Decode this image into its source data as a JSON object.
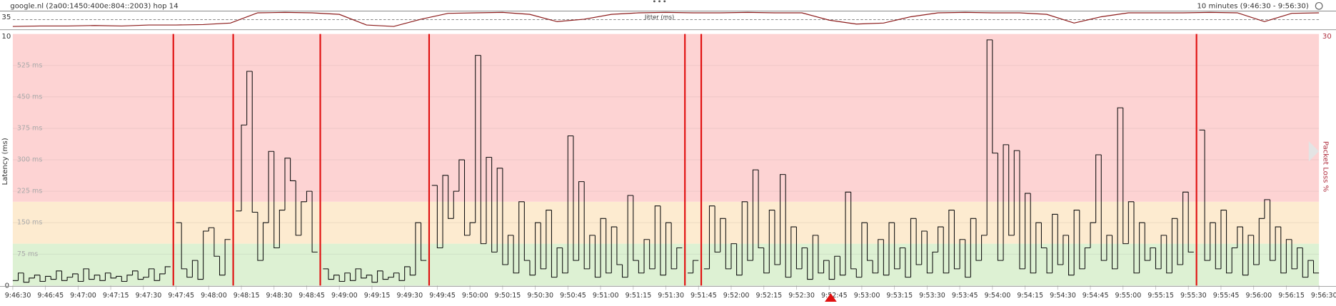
{
  "header": {
    "target": "google.nl (2a00:1450:400e:804::2003) hop 14",
    "range": "10 minutes (9:46:30 - 9:56:30)"
  },
  "chart_data": {
    "type": "line",
    "step": true,
    "ylabel": "Latency (ms)",
    "y2label": "Packet Loss %",
    "y_top_label": "10",
    "ylim": [
      0,
      600
    ],
    "yticks": [
      0,
      {
        "value": 75,
        "label": "75 ms"
      },
      {
        "value": 150,
        "label": "150 ms"
      },
      {
        "value": 225,
        "label": "225 ms"
      },
      {
        "value": 300,
        "label": "300 ms"
      },
      {
        "value": 375,
        "label": "375 ms"
      },
      {
        "value": 450,
        "label": "450 ms"
      },
      {
        "value": 525,
        "label": "525 ms"
      }
    ],
    "y2lim": [
      0,
      30
    ],
    "y2ticks": [
      30
    ],
    "grid": true,
    "zones": [
      {
        "to": 100,
        "color": "#ddf1d3"
      },
      {
        "to": 200,
        "color": "#fdebd0"
      },
      {
        "to": 600,
        "color": "#fdd3d3"
      }
    ],
    "xticks": [
      "9:46:30",
      "9:46:45",
      "9:47:00",
      "9:47:15",
      "9:47:30",
      "9:47:45",
      "9:48:00",
      "9:48:15",
      "9:48:30",
      "9:48:45",
      "9:49:00",
      "9:49:15",
      "9:49:30",
      "9:49:45",
      "9:50:00",
      "9:50:15",
      "9:50:30",
      "9:50:45",
      "9:51:00",
      "9:51:15",
      "9:51:30",
      "9:51:45",
      "9:52:00",
      "9:52:15",
      "9:52:30",
      "9:52:45",
      "9:53:00",
      "9:53:15",
      "9:53:30",
      "9:53:45",
      "9:54:00",
      "9:54:15",
      "9:54:30",
      "9:54:45",
      "9:55:00",
      "9:55:15",
      "9:55:30",
      "9:55:45",
      "9:56:00",
      "9:56:15",
      "9:56:30"
    ],
    "color": "#111111",
    "loss_color": "#e01010",
    "values": [
      12,
      30,
      8,
      18,
      25,
      10,
      22,
      15,
      35,
      12,
      20,
      28,
      10,
      40,
      15,
      25,
      12,
      30,
      18,
      22,
      10,
      25,
      35,
      15,
      20,
      40,
      12,
      28,
      45,
      null,
      150,
      40,
      20,
      60,
      15,
      130,
      138,
      70,
      25,
      110,
      null,
      178,
      383,
      511,
      175,
      60,
      150,
      320,
      90,
      180,
      304,
      250,
      120,
      200,
      225,
      80,
      null,
      40,
      15,
      25,
      10,
      30,
      12,
      40,
      18,
      25,
      8,
      35,
      15,
      20,
      30,
      12,
      45,
      25,
      150,
      60,
      null,
      239,
      90,
      263,
      160,
      225,
      300,
      120,
      150,
      549,
      100,
      306,
      80,
      280,
      50,
      120,
      30,
      200,
      60,
      25,
      150,
      40,
      180,
      20,
      90,
      30,
      357,
      60,
      248,
      40,
      120,
      20,
      160,
      30,
      140,
      50,
      20,
      215,
      60,
      30,
      110,
      40,
      190,
      25,
      150,
      40,
      90,
      null,
      30,
      60,
      null,
      40,
      190,
      80,
      160,
      40,
      100,
      25,
      200,
      60,
      276,
      90,
      30,
      180,
      50,
      265,
      20,
      140,
      40,
      90,
      15,
      120,
      30,
      60,
      15,
      70,
      25,
      223,
      40,
      20,
      150,
      60,
      30,
      110,
      25,
      150,
      40,
      90,
      20,
      160,
      50,
      130,
      30,
      80,
      140,
      30,
      180,
      40,
      110,
      20,
      160,
      60,
      120,
      586,
      316,
      60,
      336,
      120,
      322,
      40,
      220,
      30,
      150,
      90,
      30,
      170,
      50,
      120,
      25,
      180,
      40,
      90,
      150,
      312,
      60,
      120,
      40,
      424,
      100,
      200,
      30,
      150,
      60,
      90,
      40,
      120,
      30,
      160,
      50,
      223,
      80,
      null,
      371,
      60,
      150,
      40,
      180,
      30,
      90,
      140,
      25,
      120,
      50,
      160,
      205,
      60,
      140,
      30,
      110,
      40,
      90,
      20,
      60,
      30
    ],
    "jitter": {
      "label": "Jitter (ms)",
      "ylim": [
        0,
        35
      ],
      "yticks": [
        35
      ],
      "color": "#8b1a1a",
      "values": [
        5,
        6,
        6,
        7,
        6,
        8,
        8,
        9,
        12,
        33,
        34,
        33,
        30,
        8,
        5,
        20,
        32,
        33,
        34,
        30,
        15,
        20,
        30,
        33,
        34,
        33,
        33,
        34,
        33,
        33,
        18,
        10,
        12,
        25,
        33,
        34,
        33,
        33,
        30,
        12,
        25,
        33,
        33,
        33,
        34,
        33,
        15,
        32,
        33
      ]
    }
  }
}
